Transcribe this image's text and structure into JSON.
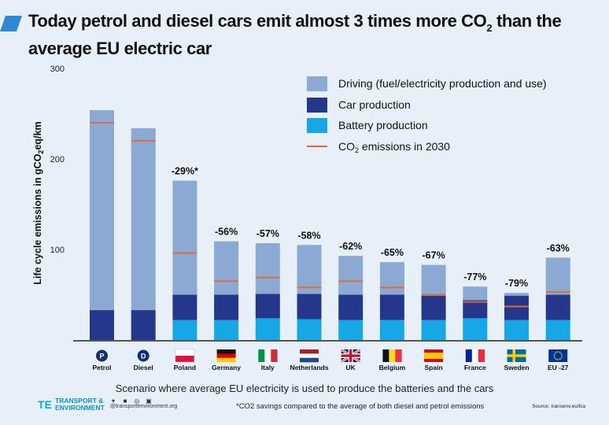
{
  "title": {
    "main": "Today petrol and diesel cars emit almost 3 times more CO",
    "sub": "2",
    "end": " than the average EU electric car"
  },
  "colors": {
    "driving": "#8ba9d2",
    "car_production": "#25378a",
    "battery_production": "#16a8e6",
    "co2_2030": "#e8672a",
    "background": "#e7f0f9"
  },
  "chart_data": {
    "type": "bar",
    "stacked": true,
    "categories": [
      "Petrol",
      "Diesel",
      "Poland",
      "Germany",
      "Italy",
      "Netherlands",
      "UK",
      "Belgium",
      "Spain",
      "France",
      "Sweden",
      "EU -27"
    ],
    "ylabel_main": "Life cycle emissions in gCO",
    "ylabel_sub": "2",
    "ylabel_end": "eq/km",
    "ylim": [
      0,
      300
    ],
    "yticks": [
      "100",
      "200",
      "300"
    ],
    "series": [
      {
        "name": "Battery production",
        "color": "#16a8e6",
        "values": [
          0,
          0,
          22,
          22,
          24,
          23,
          22,
          22,
          22,
          24,
          22,
          22
        ]
      },
      {
        "name": "Car production",
        "color": "#25378a",
        "values": [
          33,
          33,
          28,
          28,
          27,
          28,
          28,
          28,
          27,
          20,
          27,
          28
        ]
      },
      {
        "name": "Driving (fuel/electricity production and use)",
        "color": "#8ba9d2",
        "values": [
          221,
          201,
          126,
          59,
          56,
          54,
          43,
          36,
          34,
          15,
          3,
          41
        ]
      }
    ],
    "co2_2030": {
      "name": "CO2 emissions in 2030",
      "label_main": "CO",
      "label_sub": "2",
      "label_end": " emissions in 2030",
      "values": [
        240,
        220,
        96,
        65,
        69,
        58,
        65,
        58,
        50,
        42,
        37,
        53
      ]
    },
    "savings": [
      "",
      "",
      "-29%*",
      "-56%",
      "-57%",
      "-58%",
      "-62%",
      "-65%",
      "-67%",
      "-77%",
      "-79%",
      "-63%"
    ],
    "legend_labels": [
      "Driving (fuel/electricity production and use)",
      "Car production",
      "Battery production"
    ],
    "legend": "top-right",
    "grid": false
  },
  "categories_icons": [
    "petrol-pump-icon",
    "diesel-pump-icon",
    "poland-flag-icon",
    "germany-flag-icon",
    "italy-flag-icon",
    "netherlands-flag-icon",
    "uk-flag-icon",
    "belgium-flag-icon",
    "spain-flag-icon",
    "france-flag-icon",
    "sweden-flag-icon",
    "eu-flag-icon"
  ],
  "icon_letters": {
    "petrol": "P",
    "diesel": "D"
  },
  "footer": {
    "scenario": "Scenario where  average EU electricity is used to produce the batteries and the cars",
    "logo_line1": "TRANSPORT &",
    "logo_line2": "ENVIRONMENT",
    "handle": "@transportenvironment.org",
    "footnote": "*CO2 savings compared to the average of both diesel and petrol emissions",
    "source": "Source: transenv.eu/lca"
  }
}
